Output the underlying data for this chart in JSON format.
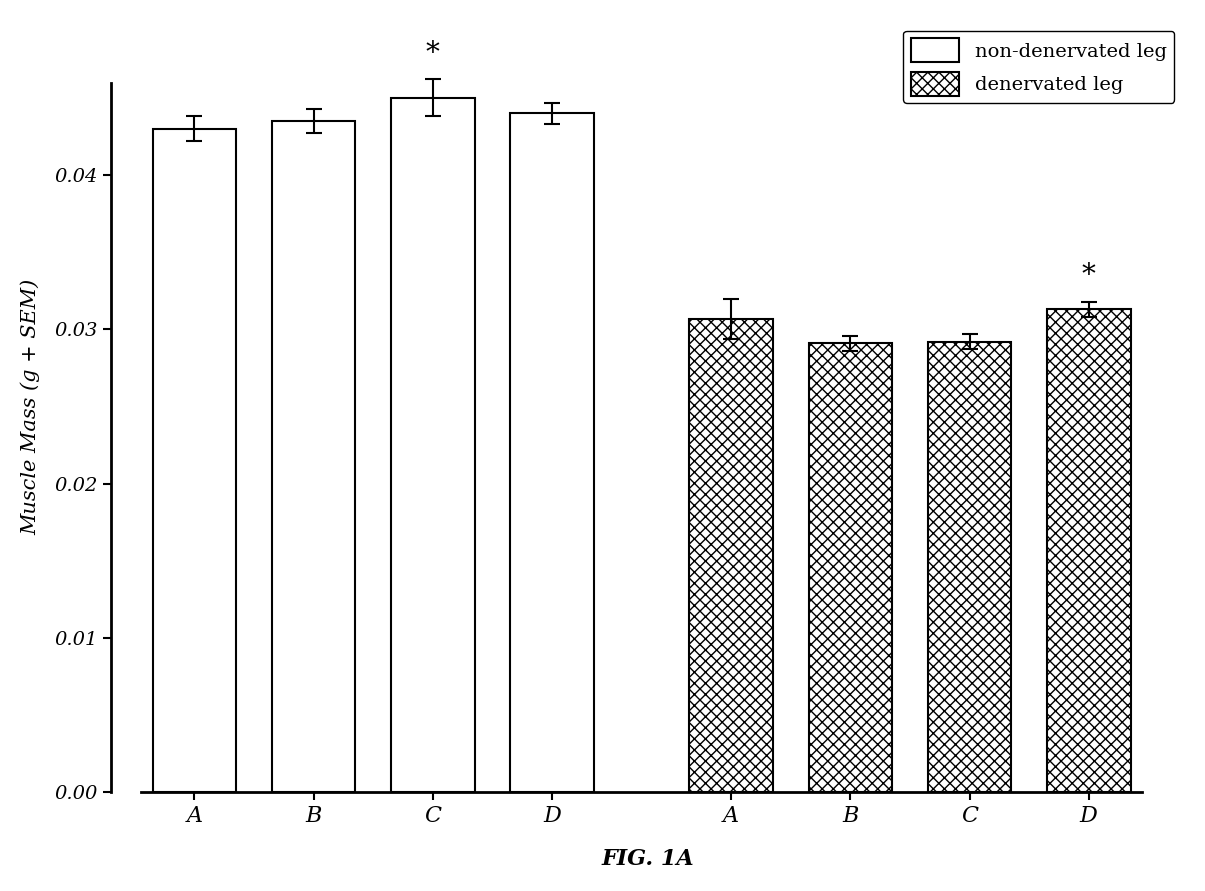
{
  "non_denervated_values": [
    0.043,
    0.0435,
    0.045,
    0.044
  ],
  "non_denervated_sem": [
    0.0008,
    0.0008,
    0.0012,
    0.0007
  ],
  "denervated_values": [
    0.0307,
    0.0291,
    0.0292,
    0.0313
  ],
  "denervated_sem": [
    0.0013,
    0.0005,
    0.0005,
    0.0005
  ],
  "categories": [
    "A",
    "B",
    "C",
    "D"
  ],
  "ylabel": "Muscle Mass (g + SEM)",
  "xlabel": "FIG. 1A",
  "ylim": [
    0.0,
    0.05
  ],
  "yticks": [
    0.0,
    0.01,
    0.02,
    0.03,
    0.04
  ],
  "legend_labels": [
    "non-denervated leg",
    "denervated leg"
  ],
  "non_den_significant": [
    false,
    false,
    true,
    false
  ],
  "den_significant": [
    false,
    false,
    false,
    true
  ],
  "background_color": "#ffffff",
  "bar_width": 0.7
}
